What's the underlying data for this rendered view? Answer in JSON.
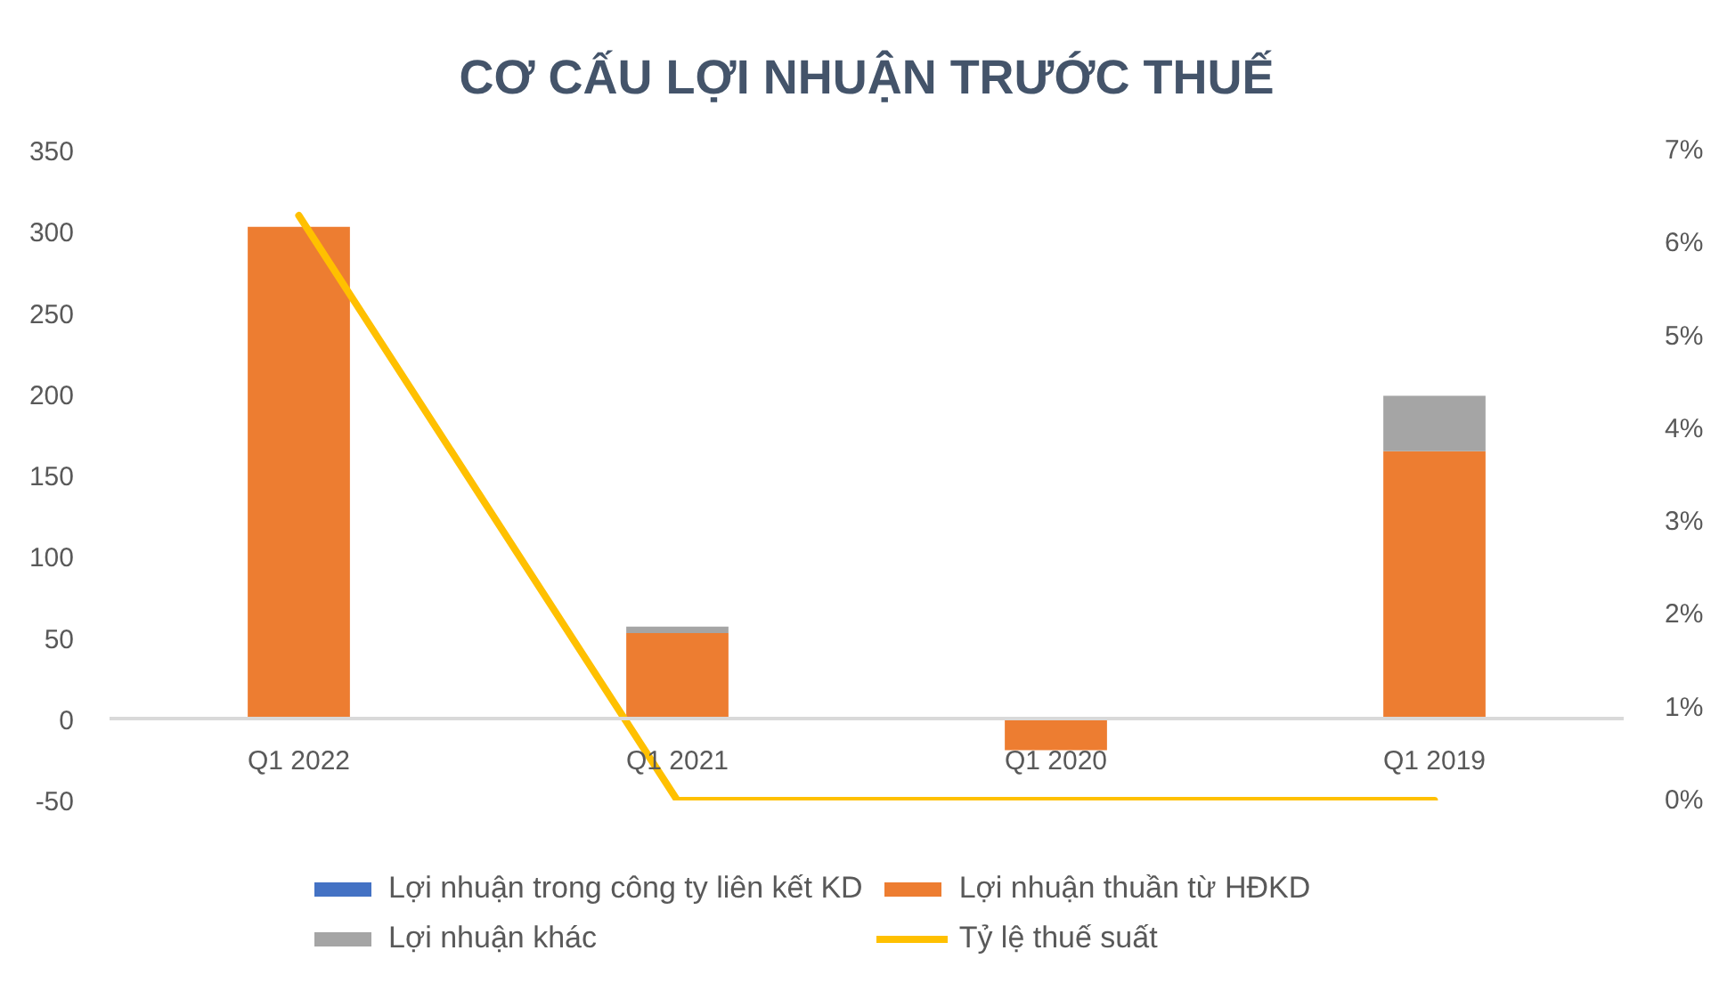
{
  "chart_data": {
    "type": "bar",
    "title": "CƠ CẤU LỢI NHUẬN TRƯỚC THUẾ",
    "categories": [
      "Q1 2022",
      "Q1 2021",
      "Q1 2020",
      "Q1 2019"
    ],
    "stacked": true,
    "series": [
      {
        "name": "Lợi nhuận trong công ty liên kết KD",
        "color": "#4472c4",
        "values": [
          null,
          null,
          null,
          null
        ]
      },
      {
        "name": "Lợi nhuận thuần từ HĐKD",
        "color": "#ed7d31",
        "values": [
          303,
          53,
          -19,
          165
        ]
      },
      {
        "name": "Lợi nhuận khác",
        "color": "#a5a5a5",
        "values": [
          null,
          4,
          null,
          34
        ]
      },
      {
        "name": "Tỷ lệ thuế suất",
        "type": "line",
        "axis": "y2",
        "color": "#ffc000",
        "values": [
          6.3,
          0,
          0,
          0
        ]
      }
    ],
    "ylim": [
      -50,
      350
    ],
    "yticks": [
      -50,
      0,
      50,
      100,
      150,
      200,
      250,
      300,
      350
    ],
    "y2lim": [
      0,
      7
    ],
    "y2ticks": [
      {
        "value": 0,
        "label": "0%"
      },
      {
        "value": 1,
        "label": "1%"
      },
      {
        "value": 2,
        "label": "2%"
      },
      {
        "value": 3,
        "label": "3%"
      },
      {
        "value": 4,
        "label": "4%"
      },
      {
        "value": 5,
        "label": "5%"
      },
      {
        "value": 6,
        "label": "6%"
      },
      {
        "value": 7,
        "label": "7%"
      }
    ],
    "grid": false,
    "legend": "bottom",
    "marker": "none",
    "line_style": "solid"
  }
}
